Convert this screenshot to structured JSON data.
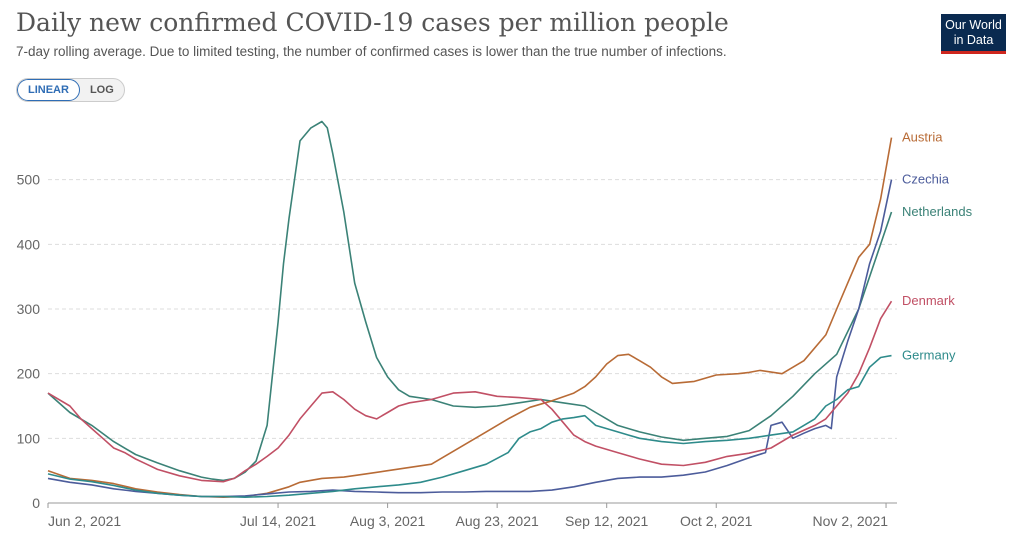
{
  "header": {
    "title": "Daily new confirmed COVID-19 cases per million people",
    "subtitle": "7-day rolling average. Due to limited testing, the number of confirmed cases is lower than the true number of infections.",
    "logo_line1": "Our World",
    "logo_line2": "in Data"
  },
  "controls": {
    "linear_label": "LINEAR",
    "log_label": "LOG",
    "active": "linear"
  },
  "chart_data": {
    "type": "line",
    "xlim": [
      0,
      155
    ],
    "ylim": [
      0,
      600
    ],
    "x_ticks": [
      {
        "day": 0,
        "label": "Jun 2, 2021"
      },
      {
        "day": 42,
        "label": "Jul 14, 2021"
      },
      {
        "day": 62,
        "label": "Aug 3, 2021"
      },
      {
        "day": 82,
        "label": "Aug 23, 2021"
      },
      {
        "day": 102,
        "label": "Sep 12, 2021"
      },
      {
        "day": 122,
        "label": "Oct 2, 2021"
      },
      {
        "day": 153,
        "label": "Nov 2, 2021"
      }
    ],
    "y_ticks": [
      0,
      100,
      200,
      300,
      400,
      500
    ],
    "grid": true,
    "legend": "line-end labels",
    "series": [
      {
        "name": "Netherlands",
        "color": "#3b8277",
        "points": [
          [
            0,
            170
          ],
          [
            4,
            140
          ],
          [
            8,
            120
          ],
          [
            12,
            95
          ],
          [
            16,
            75
          ],
          [
            20,
            62
          ],
          [
            24,
            50
          ],
          [
            28,
            40
          ],
          [
            30,
            37
          ],
          [
            32,
            35
          ],
          [
            34,
            38
          ],
          [
            36,
            48
          ],
          [
            38,
            65
          ],
          [
            40,
            120
          ],
          [
            42,
            280
          ],
          [
            43,
            370
          ],
          [
            44,
            440
          ],
          [
            45,
            500
          ],
          [
            46,
            560
          ],
          [
            48,
            580
          ],
          [
            50,
            590
          ],
          [
            51,
            580
          ],
          [
            52,
            540
          ],
          [
            54,
            450
          ],
          [
            56,
            340
          ],
          [
            58,
            280
          ],
          [
            60,
            225
          ],
          [
            62,
            195
          ],
          [
            64,
            175
          ],
          [
            66,
            165
          ],
          [
            70,
            160
          ],
          [
            74,
            150
          ],
          [
            78,
            148
          ],
          [
            82,
            150
          ],
          [
            86,
            155
          ],
          [
            90,
            160
          ],
          [
            94,
            155
          ],
          [
            98,
            150
          ],
          [
            100,
            140
          ],
          [
            102,
            130
          ],
          [
            104,
            120
          ],
          [
            106,
            115
          ],
          [
            108,
            110
          ],
          [
            112,
            102
          ],
          [
            116,
            97
          ],
          [
            120,
            100
          ],
          [
            124,
            103
          ],
          [
            128,
            112
          ],
          [
            132,
            135
          ],
          [
            136,
            165
          ],
          [
            140,
            200
          ],
          [
            144,
            230
          ],
          [
            148,
            300
          ],
          [
            150,
            350
          ],
          [
            152,
            400
          ],
          [
            154,
            450
          ]
        ]
      },
      {
        "name": "Austria",
        "color": "#b86b36",
        "points": [
          [
            0,
            50
          ],
          [
            4,
            38
          ],
          [
            8,
            35
          ],
          [
            12,
            30
          ],
          [
            16,
            22
          ],
          [
            20,
            17
          ],
          [
            24,
            13
          ],
          [
            28,
            10
          ],
          [
            32,
            9
          ],
          [
            36,
            10
          ],
          [
            40,
            15
          ],
          [
            44,
            25
          ],
          [
            46,
            32
          ],
          [
            50,
            38
          ],
          [
            54,
            40
          ],
          [
            58,
            45
          ],
          [
            62,
            50
          ],
          [
            66,
            55
          ],
          [
            70,
            60
          ],
          [
            72,
            70
          ],
          [
            76,
            90
          ],
          [
            80,
            110
          ],
          [
            84,
            130
          ],
          [
            88,
            148
          ],
          [
            92,
            158
          ],
          [
            96,
            170
          ],
          [
            98,
            180
          ],
          [
            100,
            195
          ],
          [
            102,
            215
          ],
          [
            104,
            228
          ],
          [
            106,
            230
          ],
          [
            108,
            220
          ],
          [
            110,
            210
          ],
          [
            112,
            195
          ],
          [
            114,
            185
          ],
          [
            118,
            188
          ],
          [
            122,
            198
          ],
          [
            126,
            200
          ],
          [
            128,
            202
          ],
          [
            130,
            205
          ],
          [
            134,
            200
          ],
          [
            138,
            220
          ],
          [
            142,
            260
          ],
          [
            144,
            300
          ],
          [
            146,
            340
          ],
          [
            148,
            380
          ],
          [
            150,
            400
          ],
          [
            152,
            470
          ],
          [
            154,
            565
          ]
        ]
      },
      {
        "name": "Czechia",
        "color": "#4c5c9b",
        "points": [
          [
            0,
            38
          ],
          [
            4,
            32
          ],
          [
            8,
            28
          ],
          [
            12,
            22
          ],
          [
            16,
            18
          ],
          [
            20,
            15
          ],
          [
            24,
            12
          ],
          [
            28,
            10
          ],
          [
            32,
            10
          ],
          [
            36,
            11
          ],
          [
            40,
            14
          ],
          [
            44,
            17
          ],
          [
            48,
            18
          ],
          [
            52,
            20
          ],
          [
            56,
            18
          ],
          [
            60,
            17
          ],
          [
            64,
            16
          ],
          [
            68,
            16
          ],
          [
            72,
            17
          ],
          [
            76,
            17
          ],
          [
            80,
            18
          ],
          [
            84,
            18
          ],
          [
            88,
            18
          ],
          [
            92,
            20
          ],
          [
            96,
            25
          ],
          [
            100,
            32
          ],
          [
            104,
            38
          ],
          [
            108,
            40
          ],
          [
            112,
            40
          ],
          [
            116,
            43
          ],
          [
            120,
            48
          ],
          [
            124,
            58
          ],
          [
            128,
            70
          ],
          [
            131,
            78
          ],
          [
            132,
            120
          ],
          [
            134,
            125
          ],
          [
            136,
            100
          ],
          [
            138,
            108
          ],
          [
            140,
            115
          ],
          [
            142,
            120
          ],
          [
            143,
            115
          ],
          [
            144,
            195
          ],
          [
            146,
            250
          ],
          [
            148,
            300
          ],
          [
            150,
            370
          ],
          [
            152,
            420
          ],
          [
            154,
            500
          ]
        ]
      },
      {
        "name": "Denmark",
        "color": "#c15065",
        "points": [
          [
            0,
            170
          ],
          [
            4,
            150
          ],
          [
            6,
            130
          ],
          [
            8,
            115
          ],
          [
            10,
            100
          ],
          [
            12,
            85
          ],
          [
            14,
            78
          ],
          [
            16,
            68
          ],
          [
            18,
            60
          ],
          [
            20,
            52
          ],
          [
            24,
            42
          ],
          [
            28,
            35
          ],
          [
            32,
            33
          ],
          [
            34,
            38
          ],
          [
            36,
            50
          ],
          [
            38,
            60
          ],
          [
            40,
            72
          ],
          [
            42,
            85
          ],
          [
            44,
            105
          ],
          [
            46,
            130
          ],
          [
            48,
            150
          ],
          [
            50,
            170
          ],
          [
            52,
            172
          ],
          [
            54,
            160
          ],
          [
            56,
            145
          ],
          [
            58,
            135
          ],
          [
            60,
            130
          ],
          [
            62,
            140
          ],
          [
            64,
            150
          ],
          [
            66,
            155
          ],
          [
            70,
            160
          ],
          [
            74,
            170
          ],
          [
            78,
            172
          ],
          [
            82,
            165
          ],
          [
            86,
            163
          ],
          [
            90,
            160
          ],
          [
            92,
            145
          ],
          [
            94,
            125
          ],
          [
            96,
            105
          ],
          [
            98,
            95
          ],
          [
            100,
            88
          ],
          [
            104,
            78
          ],
          [
            108,
            68
          ],
          [
            112,
            60
          ],
          [
            116,
            58
          ],
          [
            120,
            63
          ],
          [
            124,
            72
          ],
          [
            128,
            77
          ],
          [
            132,
            85
          ],
          [
            136,
            105
          ],
          [
            140,
            120
          ],
          [
            142,
            130
          ],
          [
            144,
            150
          ],
          [
            146,
            170
          ],
          [
            148,
            200
          ],
          [
            150,
            240
          ],
          [
            152,
            285
          ],
          [
            154,
            312
          ]
        ]
      },
      {
        "name": "Germany",
        "color": "#2e8b8b",
        "points": [
          [
            0,
            45
          ],
          [
            4,
            37
          ],
          [
            8,
            33
          ],
          [
            12,
            27
          ],
          [
            16,
            20
          ],
          [
            20,
            15
          ],
          [
            24,
            12
          ],
          [
            28,
            10
          ],
          [
            32,
            10
          ],
          [
            36,
            9
          ],
          [
            40,
            10
          ],
          [
            44,
            12
          ],
          [
            48,
            15
          ],
          [
            52,
            18
          ],
          [
            56,
            22
          ],
          [
            60,
            25
          ],
          [
            64,
            28
          ],
          [
            68,
            32
          ],
          [
            72,
            40
          ],
          [
            76,
            50
          ],
          [
            80,
            60
          ],
          [
            84,
            78
          ],
          [
            86,
            100
          ],
          [
            88,
            110
          ],
          [
            90,
            115
          ],
          [
            92,
            125
          ],
          [
            94,
            130
          ],
          [
            96,
            132
          ],
          [
            98,
            135
          ],
          [
            100,
            120
          ],
          [
            102,
            115
          ],
          [
            104,
            110
          ],
          [
            106,
            105
          ],
          [
            108,
            100
          ],
          [
            112,
            95
          ],
          [
            116,
            92
          ],
          [
            120,
            95
          ],
          [
            124,
            97
          ],
          [
            128,
            100
          ],
          [
            132,
            105
          ],
          [
            136,
            110
          ],
          [
            140,
            130
          ],
          [
            142,
            150
          ],
          [
            144,
            160
          ],
          [
            146,
            175
          ],
          [
            148,
            180
          ],
          [
            150,
            210
          ],
          [
            152,
            225
          ],
          [
            154,
            228
          ]
        ]
      }
    ]
  }
}
